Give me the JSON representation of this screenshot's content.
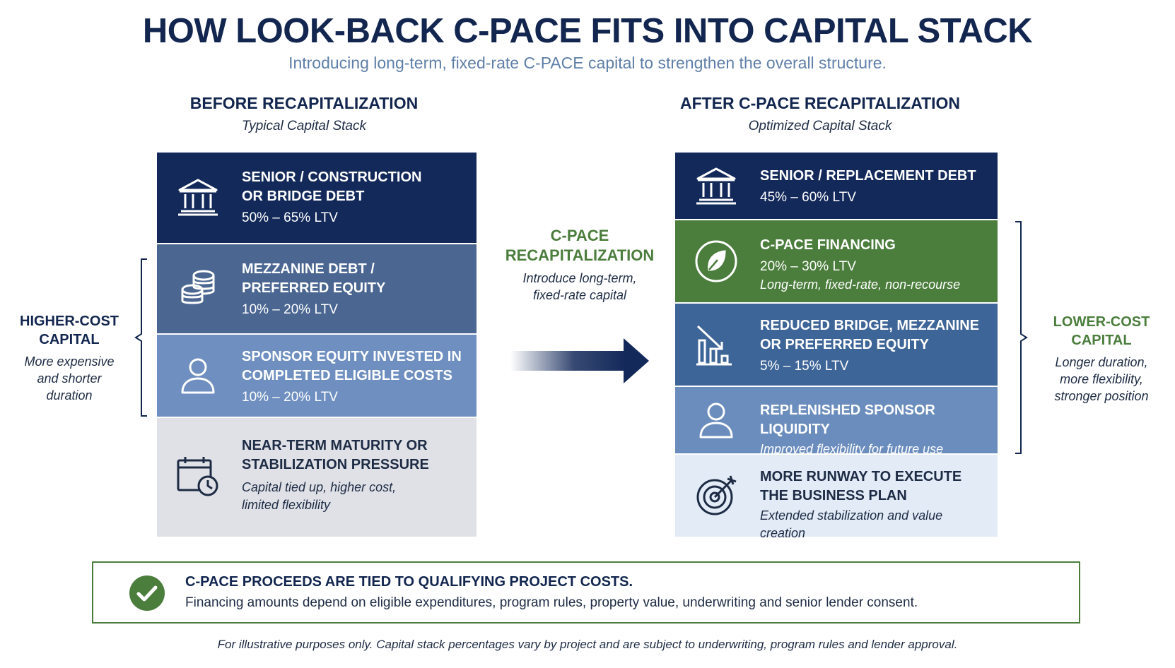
{
  "header": {
    "title": "HOW LOOK-BACK C-PACE FITS INTO CAPITAL STACK",
    "subtitle": "Introducing long-term, fixed-rate C-PACE capital to strengthen the overall structure."
  },
  "before": {
    "heading": "BEFORE RECAPITALIZATION",
    "subheading": "Typical Capital Stack",
    "blocks": [
      {
        "icon": "bank-icon",
        "title_l1": "SENIOR / CONSTRUCTION",
        "title_l2": "OR BRIDGE DEBT",
        "value": "50% – 65% LTV",
        "color": "#13295a"
      },
      {
        "icon": "coins-icon",
        "title_l1": "MEZZANINE DEBT /",
        "title_l2": "PREFERRED EQUITY",
        "value": "10% – 20% LTV",
        "color": "#4a6691"
      },
      {
        "icon": "person-icon",
        "title_l1": "SPONSOR EQUITY INVESTED IN",
        "title_l2": "COMPLETED ELIGIBLE COSTS",
        "value": "10% – 20% LTV",
        "color": "#6e8fbf"
      },
      {
        "icon": "calendar-clock-icon",
        "title_l1": "NEAR-TERM MATURITY OR",
        "title_l2": "STABILIZATION PRESSURE",
        "desc_l1": "Capital tied up, higher cost,",
        "desc_l2": "limited flexibility",
        "color": "#dfe1e6"
      }
    ]
  },
  "after": {
    "heading": "AFTER C-PACE RECAPITALIZATION",
    "subheading": "Optimized Capital Stack",
    "blocks": [
      {
        "icon": "bank-icon",
        "title": "SENIOR / REPLACEMENT DEBT",
        "value": "45% – 60% LTV",
        "color": "#13295a"
      },
      {
        "icon": "leaf-icon",
        "title": "C-PACE FINANCING",
        "value": "20% – 30% LTV",
        "desc": "Long-term, fixed-rate, non-recourse",
        "color": "#4b7d3c"
      },
      {
        "icon": "declining-chart-icon",
        "title_l1": "REDUCED BRIDGE, MEZZANINE",
        "title_l2": "OR PREFERRED EQUITY",
        "value": "5% – 15% LTV",
        "color": "#3e6597"
      },
      {
        "icon": "person-icon",
        "title": "REPLENISHED SPONSOR LIQUIDITY",
        "desc": "Improved flexibility for future use",
        "color": "#6b8dbd"
      },
      {
        "icon": "target-icon",
        "title_l1": "MORE RUNWAY TO EXECUTE",
        "title_l2": "THE BUSINESS PLAN",
        "desc": "Extended stabilization and value creation",
        "color": "#e2ebf6"
      }
    ]
  },
  "left_label": {
    "heading_l1": "HIGHER-COST",
    "heading_l2": "CAPITAL",
    "desc_l1": "More expensive",
    "desc_l2": "and shorter",
    "desc_l3": "duration"
  },
  "right_label": {
    "heading_l1": "LOWER-COST",
    "heading_l2": "CAPITAL",
    "desc_l1": "Longer duration,",
    "desc_l2": "more flexibility,",
    "desc_l3": "stronger position"
  },
  "transition": {
    "heading_l1": "C-PACE",
    "heading_l2": "RECAPITALIZATION",
    "desc_l1": "Introduce long-term,",
    "desc_l2": "fixed-rate capital"
  },
  "note": {
    "title": "C-PACE PROCEEDS ARE TIED TO QUALIFYING PROJECT COSTS.",
    "desc": "Financing amounts depend on eligible expenditures, program rules, property value, underwriting and senior lender consent."
  },
  "footer": "For illustrative purposes only. Capital stack percentages vary by project and are subject to underwriting, program rules and lender approval.",
  "colors": {
    "navy": "#13295a",
    "green": "#4b7d3c",
    "accent_blue": "#5f7fa8"
  }
}
